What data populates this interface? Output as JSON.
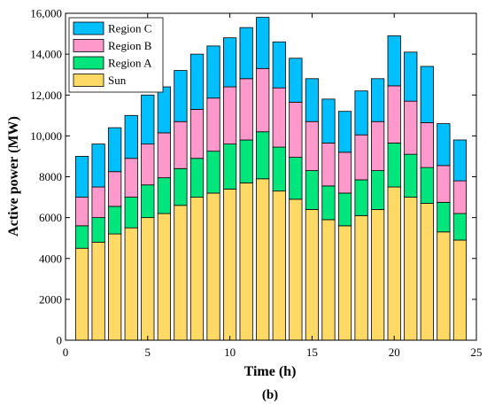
{
  "chart_data": {
    "type": "bar",
    "stacked": true,
    "caption": "(b)",
    "xlabel": "Time  (h)",
    "ylabel": "Active power (MW)",
    "xlim": [
      0,
      25
    ],
    "ylim": [
      0,
      16000
    ],
    "xticks": [
      0,
      5,
      10,
      15,
      20,
      25
    ],
    "yticks": [
      0,
      2000,
      4000,
      6000,
      8000,
      10000,
      12000,
      14000,
      16000
    ],
    "ytick_labels": [
      "0",
      "2000",
      "4000",
      "6000",
      "8000",
      "10,000",
      "12,000",
      "14,000",
      "16,000"
    ],
    "grid": false,
    "legend_position": "top-left",
    "x": [
      1,
      2,
      3,
      4,
      5,
      6,
      7,
      8,
      9,
      10,
      11,
      12,
      13,
      14,
      15,
      16,
      17,
      18,
      19,
      20,
      21,
      22,
      23,
      24
    ],
    "series": [
      {
        "name": "Sun",
        "color": "#FFD966",
        "values": [
          4500,
          4800,
          5200,
          5500,
          6000,
          6200,
          6600,
          7000,
          7200,
          7400,
          7700,
          7900,
          7300,
          6900,
          6400,
          5900,
          5600,
          6100,
          6400,
          7500,
          7000,
          6700,
          5300,
          4900
        ]
      },
      {
        "name": "Region A",
        "color": "#00E67D",
        "values": [
          1100,
          1200,
          1350,
          1500,
          1600,
          1750,
          1800,
          1900,
          2050,
          2200,
          2100,
          2300,
          2150,
          2050,
          1900,
          1650,
          1600,
          1750,
          1900,
          2150,
          2100,
          1750,
          1450,
          1300
        ]
      },
      {
        "name": "Region B",
        "color": "#FF99CC",
        "values": [
          1400,
          1500,
          1700,
          1900,
          2000,
          2200,
          2300,
          2400,
          2600,
          2800,
          3000,
          3100,
          2900,
          2700,
          2400,
          2100,
          2000,
          2200,
          2400,
          2800,
          2600,
          2200,
          1800,
          1600
        ]
      },
      {
        "name": "Region C",
        "color": "#00BFFF",
        "values": [
          2000,
          2100,
          2150,
          2100,
          2400,
          2250,
          2500,
          2700,
          2550,
          2400,
          2500,
          2500,
          2250,
          2150,
          2100,
          2150,
          2000,
          2150,
          2100,
          2450,
          2400,
          2750,
          2050,
          2000
        ]
      }
    ]
  }
}
